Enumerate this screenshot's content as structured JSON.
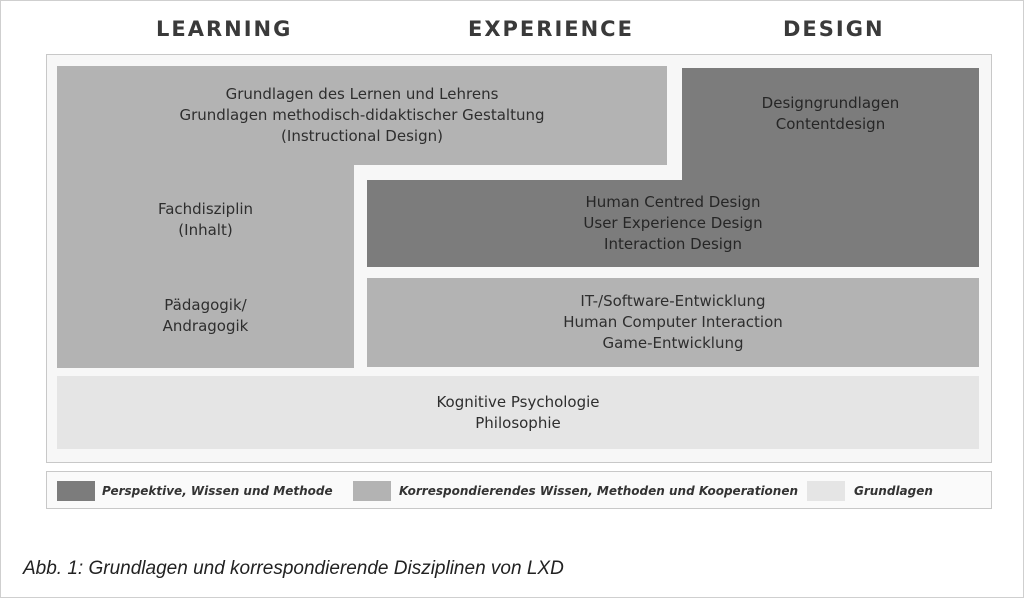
{
  "headings": {
    "learning": "LEARNING",
    "experience": "EXPERIENCE",
    "design": "DESIGN"
  },
  "blocks": {
    "grundlagen_lernen": [
      "Grundlagen des Lernen und Lehrens",
      "Grundlagen methodisch-didaktischer Gestaltung",
      "(Instructional Design)"
    ],
    "fachdisziplin": [
      "Fachdisziplin",
      "(Inhalt)"
    ],
    "paedagogik": [
      "Pädagogik/",
      "Andragogik"
    ],
    "designgrundlagen": [
      "Designgrundlagen",
      "Contentdesign"
    ],
    "human_centred": [
      "Human Centred Design",
      "User Experience Design",
      "Interaction Design"
    ],
    "it_software": [
      "IT-/Software-Entwicklung",
      "Human Computer Interaction",
      "Game-Entwicklung"
    ],
    "kognitive": [
      "Kognitive Psychologie",
      "Philosophie"
    ]
  },
  "legend": {
    "dark": "Perspektive, Wissen und Methode",
    "mid": "Korrespondierendes Wissen, Methoden und Kooperationen",
    "light": "Grundlagen"
  },
  "colors": {
    "dark": "#7c7c7c",
    "mid": "#b3b3b3",
    "light": "#e5e5e5"
  },
  "caption": "Abb. 1: Grundlagen und korrespondierende Disziplinen von LXD"
}
